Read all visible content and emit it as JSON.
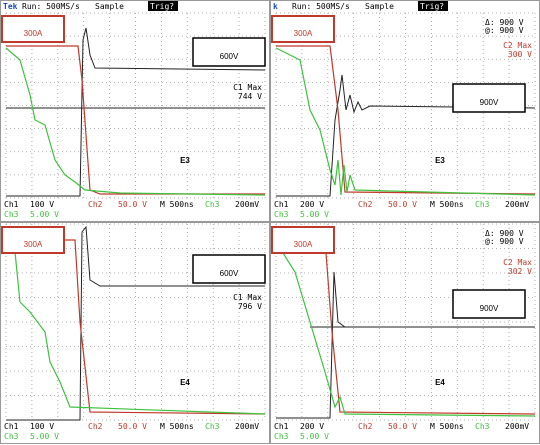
{
  "panels": [
    {
      "status": {
        "brand": "Tek",
        "run": "Run: 500MS/s",
        "mode": "Sample",
        "trig": "Trig?"
      },
      "current": "300A",
      "voltage": "600V",
      "device": "E3",
      "measurement": {
        "name": "C1 Max",
        "value": "744 V"
      },
      "readout": {
        "ch1": "Ch1",
        "ch1_scale": "100 V",
        "ch2": "Ch2",
        "ch2_scale": "50.0 V",
        "time": "M 500ns",
        "ch3": "Ch3",
        "ch3_trig": "200mV",
        "ch3_label": "Ch3",
        "ch3_scale": "5.00 V"
      }
    },
    {
      "status": {
        "brand": "k",
        "run": "Run: 500MS/s",
        "mode": "Sample",
        "trig": "Trig?"
      },
      "current": "300A",
      "voltage": "900V",
      "device": "E3",
      "cursors": [
        "Δ: 900 V",
        "@: 900 V"
      ],
      "measurement": {
        "name": "C2 Max",
        "value": "300 V"
      },
      "readout": {
        "ch1": "Ch1",
        "ch1_scale": "200 V",
        "ch2": "Ch2",
        "ch2_scale": "50.0 V",
        "time": "M 500ns",
        "ch3": "Ch3",
        "ch3_trig": "200mV",
        "ch3_label": "Ch3",
        "ch3_scale": "5.00 V"
      }
    },
    {
      "current": "300A",
      "voltage": "600V",
      "device": "E4",
      "measurement": {
        "name": "C1 Max",
        "value": "796 V"
      },
      "readout": {
        "ch1": "Ch1",
        "ch1_scale": "100 V",
        "ch2": "Ch2",
        "ch2_scale": "50.0 V",
        "time": "M 500ns",
        "ch3": "Ch3",
        "ch3_trig": "200mV",
        "ch3_label": "Ch3",
        "ch3_scale": "5.00 V"
      }
    },
    {
      "current": "300A",
      "voltage": "900V",
      "device": "E4",
      "cursors": [
        "Δ: 900 V",
        "@: 900 V"
      ],
      "measurement": {
        "name": "C2 Max",
        "value": "302 V"
      },
      "readout": {
        "ch1": "Ch1",
        "ch1_scale": "200 V",
        "ch2": "Ch2",
        "ch2_scale": "50.0 V",
        "time": "M 500ns",
        "ch3": "Ch3",
        "ch3_trig": "200mV",
        "ch3_label": "Ch3",
        "ch3_scale": "5.00 V"
      }
    }
  ]
}
